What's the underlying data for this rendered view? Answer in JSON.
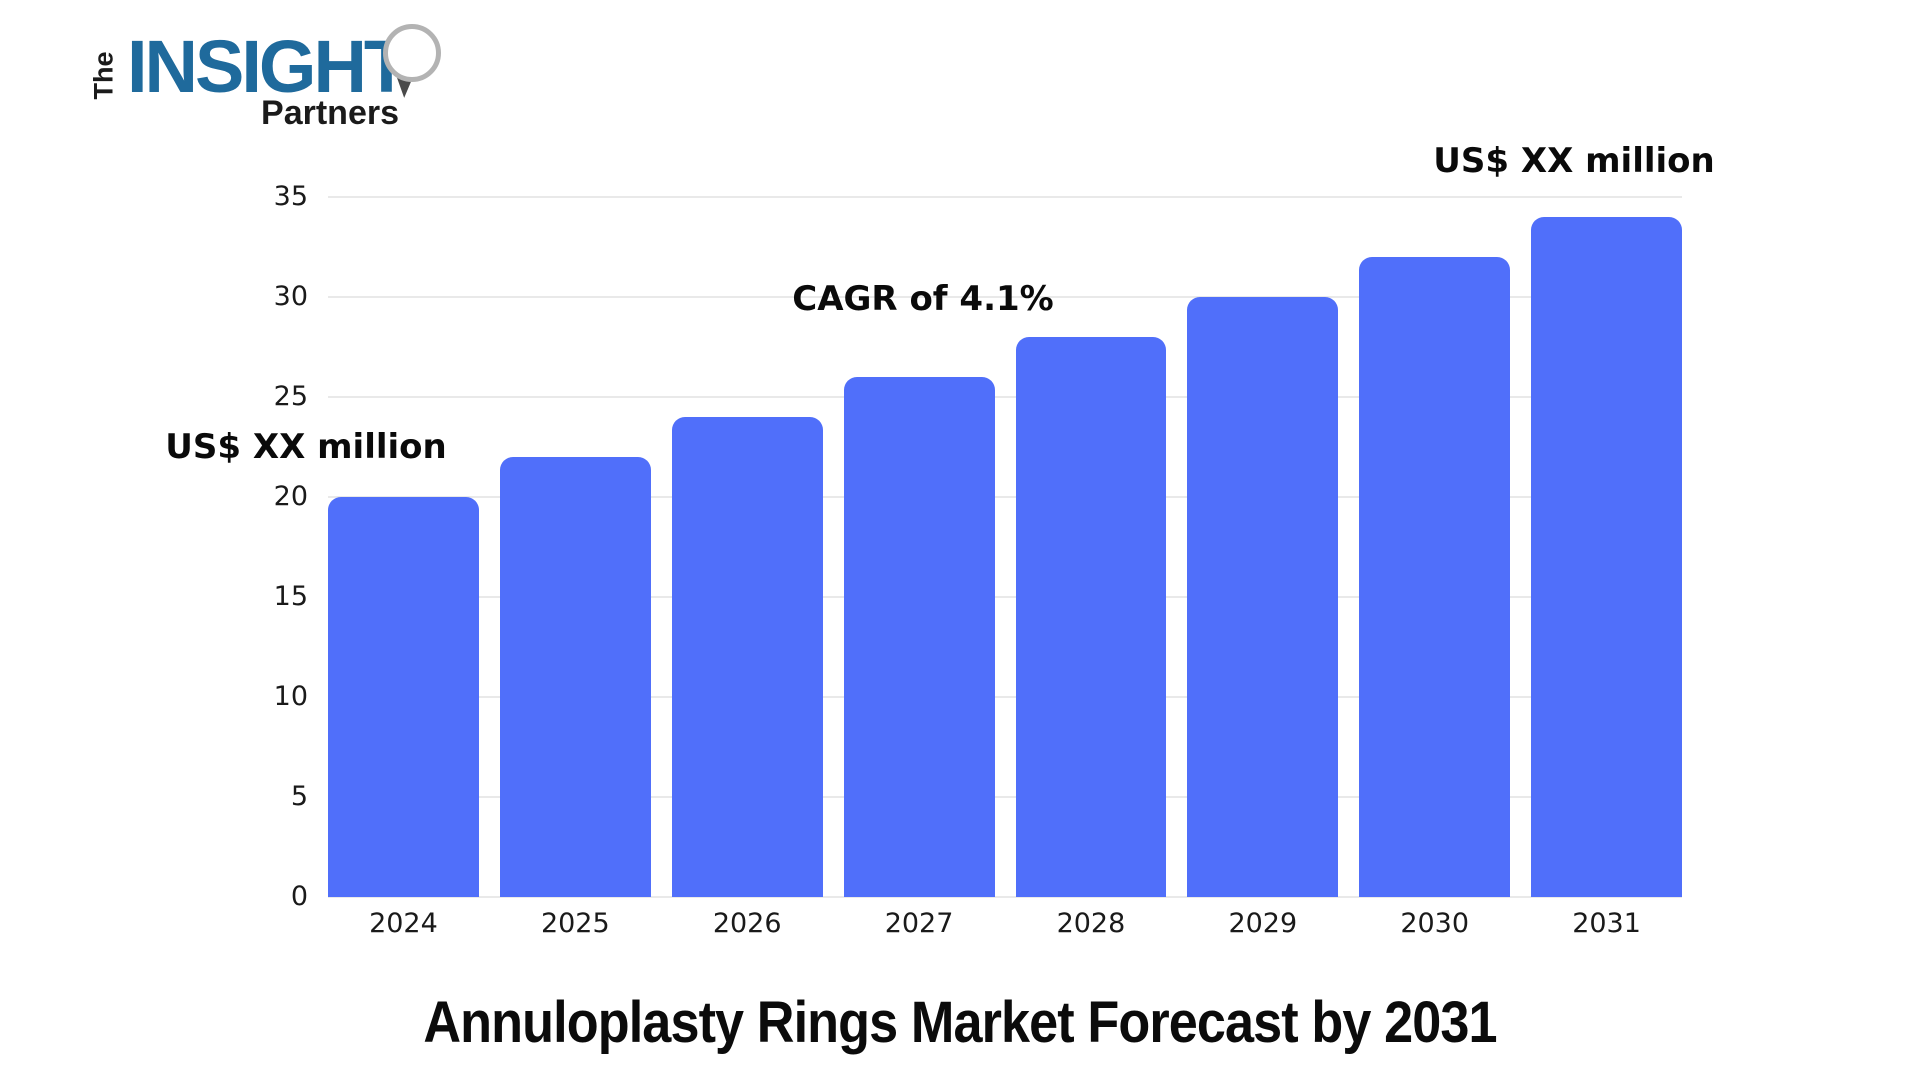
{
  "logo": {
    "the": "The",
    "insight": "INSIGHT",
    "partners": "Partners",
    "brand_blue": "#1f6a9c"
  },
  "chart_data": {
    "type": "bar",
    "categories": [
      "2024",
      "2025",
      "2026",
      "2027",
      "2028",
      "2029",
      "2030",
      "2031"
    ],
    "values": [
      20,
      22,
      24,
      26,
      28,
      30,
      32,
      34
    ],
    "title": "Annuloplasty Rings Market Forecast by 2031",
    "xlabel": "",
    "ylabel": "",
    "ylim": [
      0,
      35
    ],
    "yticks": [
      0,
      5,
      10,
      15,
      20,
      25,
      30,
      35
    ],
    "grid": true,
    "legend": false,
    "bar_color": "#506ffa",
    "annotations": {
      "start_value": "US$ XX million",
      "cagr": "CAGR of 4.1%",
      "end_value": "US$ XX million"
    }
  }
}
